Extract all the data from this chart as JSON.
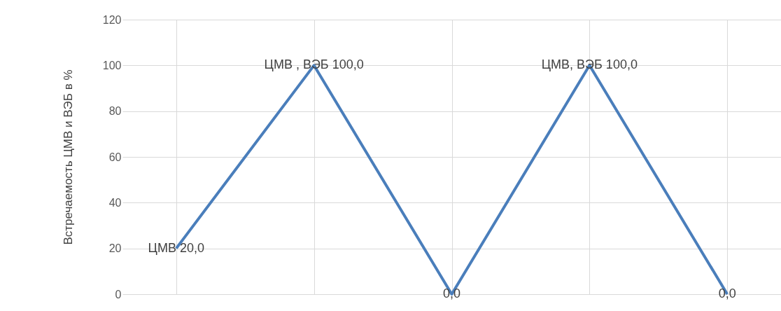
{
  "chart_data": {
    "type": "line",
    "ylabel": "Встречаемость ЦМВ и ВЭБ в %",
    "categories": [
      null,
      null,
      null,
      null,
      null
    ],
    "series": [
      {
        "color": "#4a7ebb",
        "values": [
          20,
          100,
          0,
          100,
          0
        ],
        "value_labels": [
          "ЦМВ 20,0",
          "ЦМВ , ВЭБ 100,0",
          "0,0",
          "ЦМВ, ВЭБ 100,0",
          "0,0"
        ]
      }
    ],
    "ylim": [
      0,
      120
    ],
    "yticks": [
      0,
      20,
      40,
      60,
      80,
      100,
      120
    ],
    "grid": true,
    "tick_labels": "y",
    "marker": "none"
  }
}
